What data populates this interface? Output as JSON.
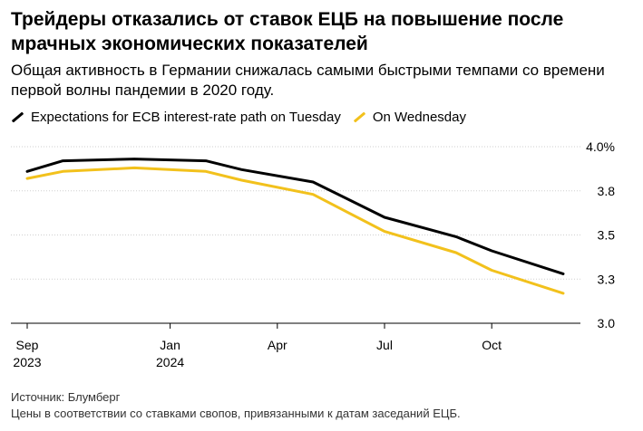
{
  "chart_data": {
    "type": "line",
    "title": "Трейдеры отказались от ставок ЕЦБ на повышение после мрачных экономических показателей",
    "subtitle": "Общая активность в Германии снижалась самыми быстрыми темпами со времени первой волны пандемии в 2020 году.",
    "x_ticks": [
      {
        "label": "Sep",
        "year": "2023",
        "x": 0
      },
      {
        "label": "Jan",
        "year": "2024",
        "x": 4
      },
      {
        "label": "Apr",
        "year": "",
        "x": 7
      },
      {
        "label": "Jul",
        "year": "",
        "x": 10
      },
      {
        "label": "Oct",
        "year": "",
        "x": 13
      }
    ],
    "y_ticks": [
      {
        "value": 4.0,
        "label": "4.0%"
      },
      {
        "value": 3.75,
        "label": "3.8"
      },
      {
        "value": 3.5,
        "label": "3.5"
      },
      {
        "value": 3.25,
        "label": "3.3"
      },
      {
        "value": 3.0,
        "label": "3.0"
      }
    ],
    "ylim": [
      3.0,
      4.0
    ],
    "xlim": [
      0,
      15
    ],
    "series": [
      {
        "name": "Expectations for ECB interest-rate path on Tuesday",
        "color": "#000000",
        "x": [
          0,
          1,
          3,
          5,
          6,
          8,
          10,
          12,
          13,
          15
        ],
        "y": [
          3.86,
          3.92,
          3.93,
          3.92,
          3.87,
          3.8,
          3.6,
          3.49,
          3.41,
          3.28
        ]
      },
      {
        "name": "On Wednesday",
        "color": "#f2c11c",
        "x": [
          0,
          1,
          3,
          5,
          6,
          8,
          10,
          12,
          13,
          15
        ],
        "y": [
          3.82,
          3.86,
          3.88,
          3.86,
          3.81,
          3.73,
          3.52,
          3.4,
          3.3,
          3.17
        ]
      }
    ]
  },
  "footer": {
    "source": "Источник: Блумберг",
    "note": "Цены в соответствии со ставками свопов, привязанными к датам заседаний ЕЦБ."
  }
}
